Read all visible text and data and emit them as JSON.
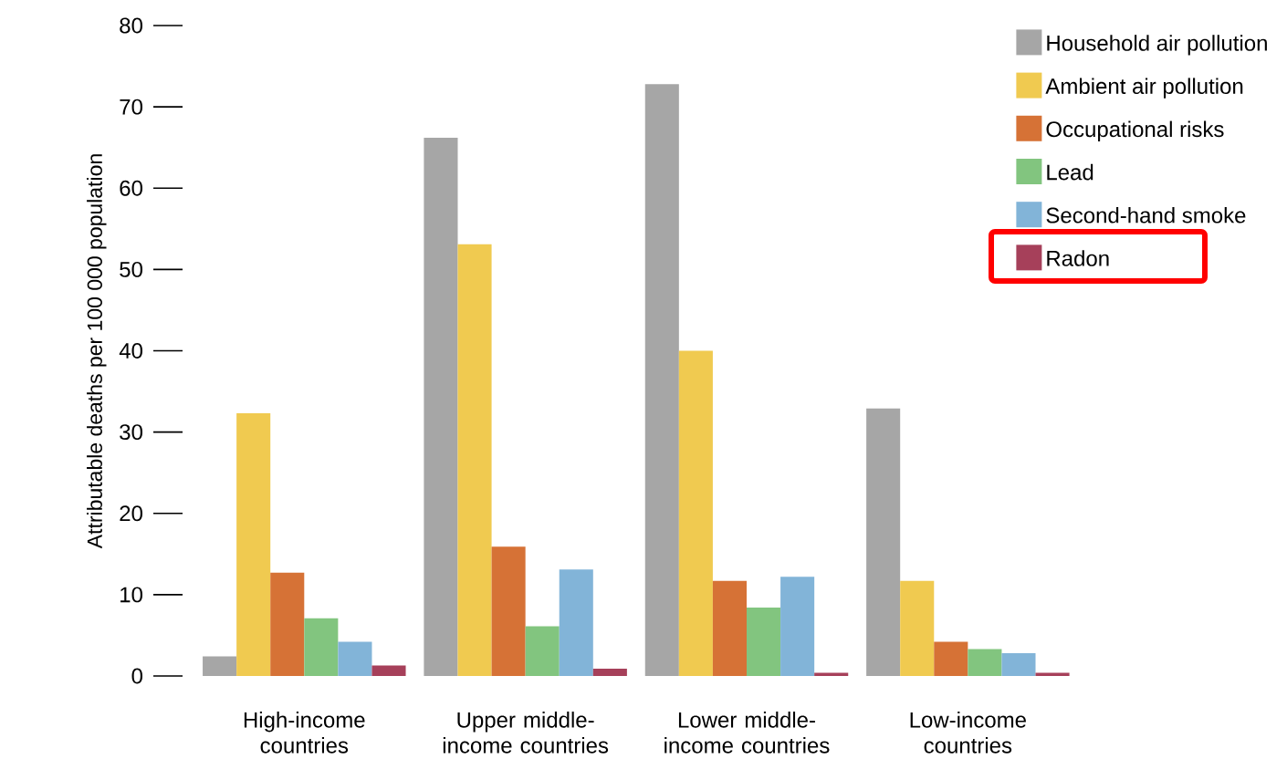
{
  "chart_data": {
    "type": "bar",
    "ylabel": "Attributable deaths per 100 000 population",
    "categories": [
      "High-income countries",
      "Upper middle-income countries",
      "Lower middle-income countries",
      "Low-income countries"
    ],
    "series": [
      {
        "name": "Household air pollution",
        "color": "#a6a6a6",
        "values": [
          2.4,
          66.2,
          72.8,
          32.9
        ]
      },
      {
        "name": "Ambient air pollution",
        "color": "#f0ca50",
        "values": [
          32.3,
          53.1,
          40.0,
          11.7
        ]
      },
      {
        "name": "Occupational risks",
        "color": "#d67236",
        "values": [
          12.7,
          15.9,
          11.7,
          4.2
        ]
      },
      {
        "name": "Lead",
        "color": "#82c57f",
        "values": [
          7.1,
          6.1,
          8.4,
          3.3
        ]
      },
      {
        "name": "Second-hand smoke",
        "color": "#82b4d8",
        "values": [
          4.2,
          13.1,
          12.2,
          2.8
        ]
      },
      {
        "name": "Radon",
        "color": "#a6405a",
        "values": [
          1.3,
          0.9,
          0.4,
          0.4
        ]
      }
    ],
    "ylim": [
      0,
      80
    ],
    "yticks": [
      0,
      10,
      20,
      30,
      40,
      50,
      60,
      70,
      80
    ],
    "grid": false,
    "legend": "top right"
  }
}
